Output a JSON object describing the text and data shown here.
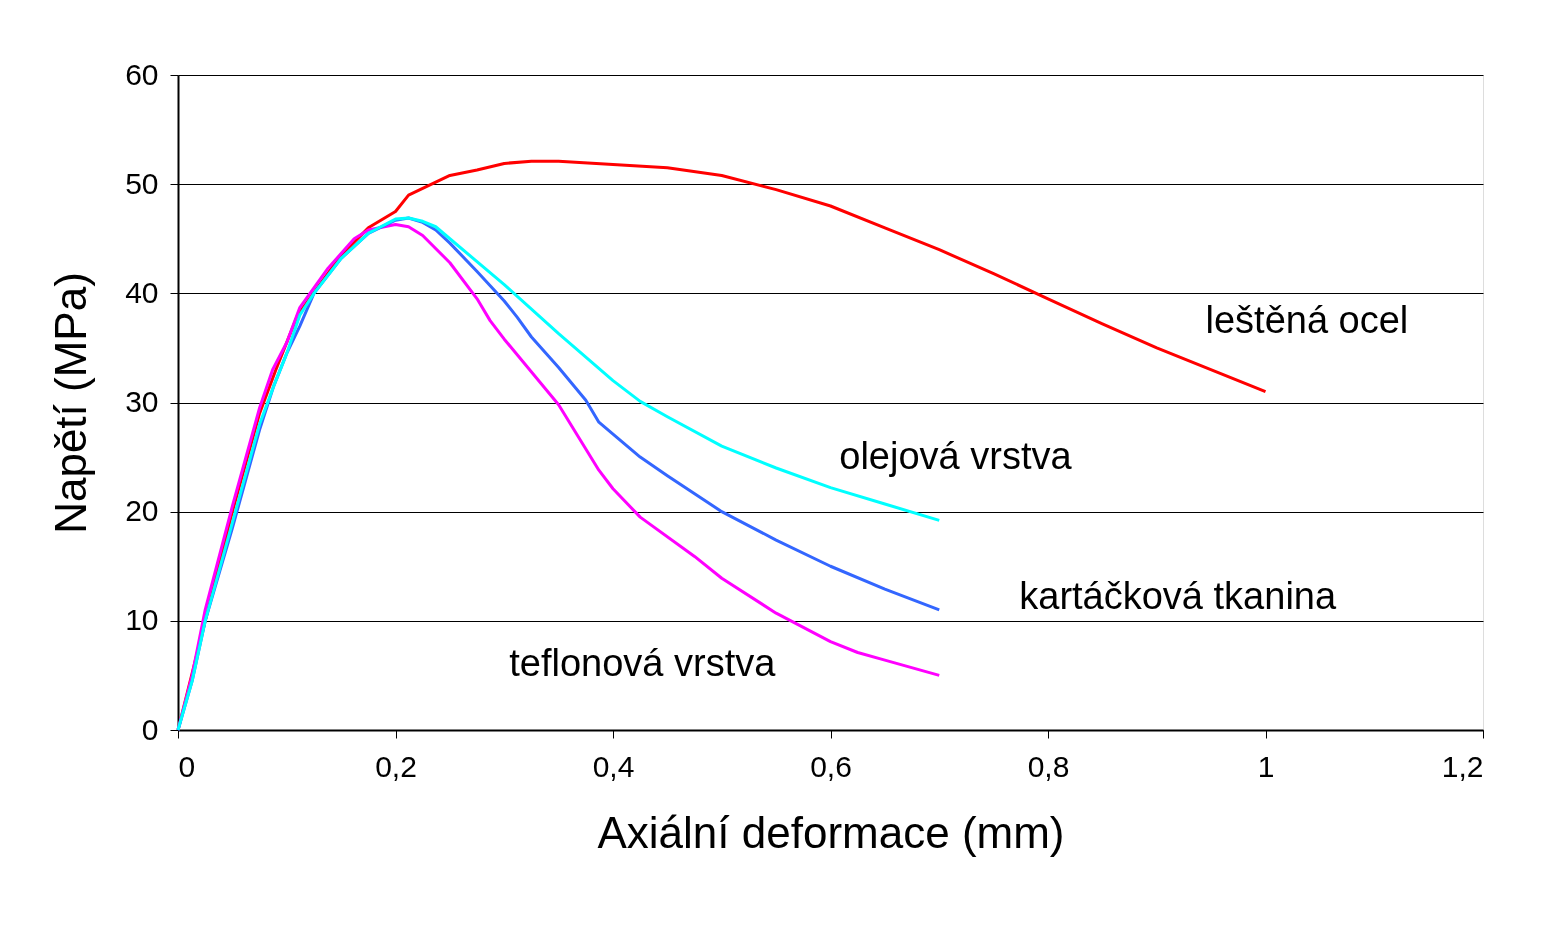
{
  "chart_data": {
    "type": "line",
    "xlabel": "Axiální deformace (mm)",
    "ylabel": "Napětí (MPa)",
    "xlim": [
      0,
      1.2
    ],
    "xticks": [
      0,
      {
        "value": 0.2,
        "label": "0,2"
      },
      {
        "value": 0.4,
        "label": "0,4"
      },
      {
        "value": 0.6,
        "label": "0,6"
      },
      {
        "value": 0.8,
        "label": "0,8"
      },
      1,
      {
        "value": 1.2,
        "label": "1,2"
      }
    ],
    "ylim": [
      0,
      60
    ],
    "yticks": [
      0,
      10,
      20,
      30,
      40,
      50,
      60
    ],
    "grid": "y",
    "legend": false,
    "marker": "none",
    "line_style": "solid",
    "series": [
      {
        "name": "leštěná ocel",
        "color": "#ff0000",
        "x": [
          0,
          0.025,
          0.05,
          0.075,
          0.09,
          0.11,
          0.15,
          0.175,
          0.2,
          0.212,
          0.25,
          0.275,
          0.3,
          0.325,
          0.35,
          0.4,
          0.45,
          0.5,
          0.55,
          0.6,
          0.65,
          0.7,
          0.75,
          0.8,
          0.85,
          0.9,
          1.0
        ],
        "values": [
          0,
          10,
          20,
          29,
          33,
          38,
          43.5,
          46,
          47.5,
          49,
          50.8,
          51.3,
          51.9,
          52.1,
          52.1,
          51.8,
          51.5,
          50.8,
          49.5,
          48,
          46,
          44,
          41.8,
          39.5,
          37.2,
          35,
          31
        ]
      },
      {
        "name": "olejová vrstva",
        "color": "#00ffff",
        "x": [
          0,
          0.013,
          0.025,
          0.05,
          0.075,
          0.088,
          0.1,
          0.112,
          0.125,
          0.15,
          0.175,
          0.2,
          0.212,
          0.225,
          0.237,
          0.25,
          0.3,
          0.35,
          0.4,
          0.425,
          0.45,
          0.5,
          0.55,
          0.6,
          0.65,
          0.7
        ],
        "values": [
          0,
          4.5,
          10,
          19,
          28,
          31.5,
          34.5,
          38,
          40,
          43.2,
          45.5,
          46.8,
          46.9,
          46.6,
          46.1,
          45,
          40.8,
          36.3,
          32,
          30.1,
          28.7,
          26,
          24,
          22.2,
          20.7,
          19.2
        ]
      },
      {
        "name": "kartáčková tkanina",
        "color": "#3366ff",
        "x": [
          0,
          0.013,
          0.025,
          0.05,
          0.075,
          0.088,
          0.1,
          0.112,
          0.125,
          0.15,
          0.175,
          0.2,
          0.212,
          0.225,
          0.237,
          0.25,
          0.275,
          0.3,
          0.312,
          0.325,
          0.35,
          0.375,
          0.387,
          0.4,
          0.425,
          0.45,
          0.5,
          0.55,
          0.6,
          0.65,
          0.7
        ],
        "values": [
          0,
          4.5,
          10,
          18.5,
          27.5,
          31.5,
          34.5,
          37,
          40,
          43.2,
          45.5,
          46.7,
          46.9,
          46.5,
          45.8,
          44.6,
          42,
          39.3,
          37.8,
          36,
          33.2,
          30.2,
          28.2,
          27.1,
          25,
          23.3,
          20,
          17.4,
          15,
          12.9,
          11
        ]
      },
      {
        "name": "teflonová vrstva",
        "color": "#ff00ff",
        "x": [
          0,
          0.013,
          0.025,
          0.05,
          0.075,
          0.087,
          0.1,
          0.112,
          0.125,
          0.138,
          0.162,
          0.175,
          0.2,
          0.212,
          0.225,
          0.25,
          0.275,
          0.287,
          0.3,
          0.35,
          0.387,
          0.4,
          0.425,
          0.475,
          0.5,
          0.55,
          0.6,
          0.625,
          0.65,
          0.7
        ],
        "values": [
          0,
          5,
          11,
          20.5,
          29.5,
          33,
          35.5,
          38.7,
          40.5,
          42.3,
          45,
          45.8,
          46.3,
          46.1,
          45.3,
          42.8,
          39.5,
          37.5,
          35.8,
          29.8,
          23.8,
          22.1,
          19.5,
          15.9,
          13.9,
          10.7,
          8.1,
          7.1,
          6.4,
          5
        ]
      }
    ]
  }
}
